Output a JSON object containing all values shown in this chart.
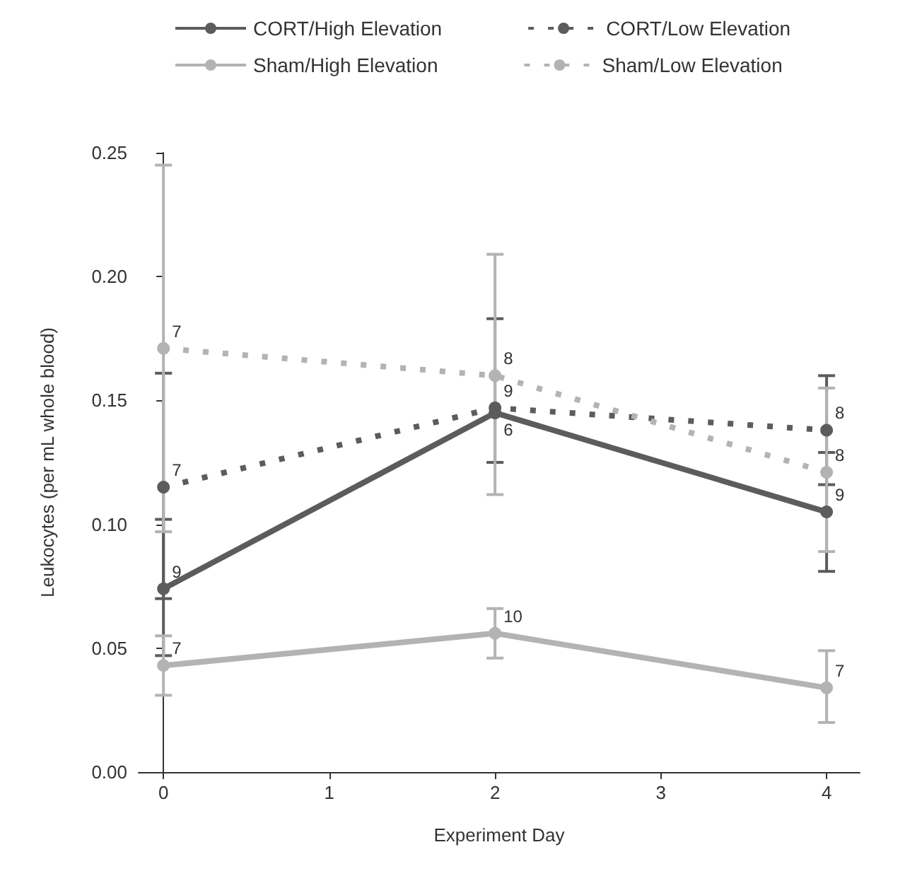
{
  "chart_data": {
    "type": "line",
    "xlabel": "Experiment Day",
    "ylabel": "Leukocytes (per mL whole blood)",
    "x": [
      0,
      2,
      4
    ],
    "xlim": [
      -0.15,
      4.2
    ],
    "xticks": [
      0,
      1,
      2,
      3,
      4
    ],
    "ylim": [
      0,
      0.25
    ],
    "yticks": [
      {
        "value": 0,
        "label": "0.00"
      },
      {
        "value": 0.05,
        "label": "0.05"
      },
      {
        "value": 0.1,
        "label": "0.10"
      },
      {
        "value": 0.15,
        "label": "0.15"
      },
      {
        "value": 0.2,
        "label": "0.20"
      },
      {
        "value": 0.25,
        "label": "0.25"
      }
    ],
    "grid": false,
    "legend": "top",
    "marker": "circle",
    "annotations": [
      {
        "text": "9",
        "x": 0,
        "y": 0.074
      },
      {
        "text": "6",
        "x": 2,
        "y": 0.145
      },
      {
        "text": "9",
        "x": 4,
        "y": 0.105
      },
      {
        "text": "7",
        "x": 0,
        "y": 0.115
      },
      {
        "text": "9",
        "x": 2,
        "y": 0.147
      },
      {
        "text": "8",
        "x": 4,
        "y": 0.138
      },
      {
        "text": "7",
        "x": 0,
        "y": 0.043
      },
      {
        "text": "10",
        "x": 2,
        "y": 0.056
      },
      {
        "text": "7",
        "x": 4,
        "y": 0.034
      },
      {
        "text": "7",
        "x": 0,
        "y": 0.171
      },
      {
        "text": "8",
        "x": 2,
        "y": 0.16
      },
      {
        "text": "8",
        "x": 4,
        "y": 0.121
      }
    ],
    "series": [
      {
        "name": "CORT/High Elevation",
        "color": "#5c5c5c",
        "line_style": "solid",
        "values": [
          0.074,
          0.145,
          0.105
        ],
        "errors": [
          [
            0.047,
            0.102
          ],
          null,
          [
            0.081,
            0.129
          ]
        ]
      },
      {
        "name": "CORT/Low Elevation",
        "color": "#5c5c5c",
        "line_style": "dotted",
        "values": [
          0.115,
          0.147,
          0.138
        ],
        "errors": [
          [
            0.07,
            0.161
          ],
          [
            0.125,
            0.183
          ],
          [
            0.116,
            0.16
          ]
        ]
      },
      {
        "name": "Sham/High Elevation",
        "color": "#b3b3b3",
        "line_style": "solid",
        "values": [
          0.043,
          0.056,
          0.034
        ],
        "errors": [
          [
            0.031,
            0.055
          ],
          [
            0.046,
            0.066
          ],
          [
            0.02,
            0.049
          ]
        ]
      },
      {
        "name": "Sham/Low Elevation",
        "color": "#b3b3b3",
        "line_style": "dotted",
        "values": [
          0.171,
          0.16,
          0.121
        ],
        "errors": [
          [
            0.097,
            0.245
          ],
          [
            0.112,
            0.209
          ],
          [
            0.089,
            0.155
          ]
        ]
      }
    ]
  }
}
